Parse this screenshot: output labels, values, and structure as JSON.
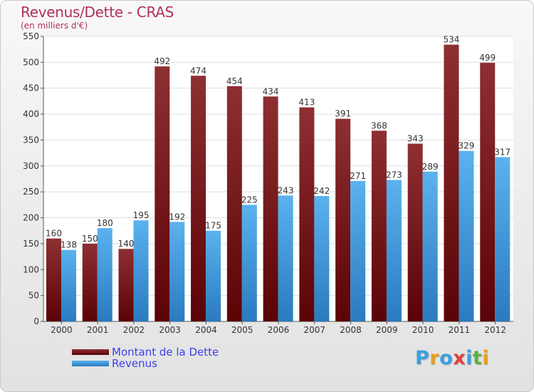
{
  "chart_data": {
    "type": "bar",
    "title": "Revenus/Dette - CRAS",
    "subtitle": "(en milliers d'€)",
    "categories": [
      "2000",
      "2001",
      "2002",
      "2003",
      "2004",
      "2005",
      "2006",
      "2007",
      "2008",
      "2009",
      "2010",
      "2011",
      "2012"
    ],
    "series": [
      {
        "name": "Montant de la Dette",
        "color": "#7a1518",
        "values": [
          160,
          150,
          140,
          492,
          474,
          454,
          434,
          413,
          391,
          368,
          343,
          534,
          499
        ]
      },
      {
        "name": "Revenus",
        "color": "#3d9be0",
        "values": [
          138,
          180,
          195,
          192,
          175,
          225,
          243,
          242,
          271,
          273,
          289,
          329,
          317
        ]
      }
    ],
    "ylim": [
      0,
      550
    ],
    "yticks": [
      0,
      50,
      100,
      150,
      200,
      250,
      300,
      350,
      400,
      450,
      500,
      550
    ],
    "grid": true,
    "legend": "bottom-left"
  },
  "logo": {
    "text": "Proxiti",
    "letters": [
      {
        "ch": "P",
        "color": "#3aa0e0"
      },
      {
        "ch": "r",
        "color": "#e8a020"
      },
      {
        "ch": "o",
        "color": "#3aa0e0"
      },
      {
        "ch": "x",
        "color": "#e04040"
      },
      {
        "ch": "i",
        "color": "#3aa0e0"
      },
      {
        "ch": "t",
        "color": "#60b040"
      },
      {
        "ch": "i",
        "color": "#e8a020"
      }
    ]
  }
}
